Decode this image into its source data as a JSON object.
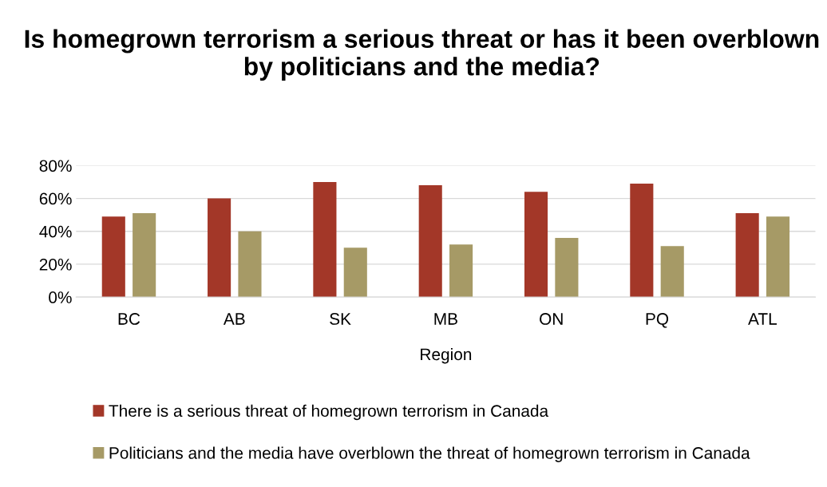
{
  "chart_data": {
    "type": "bar",
    "title": "Is homegrown terrorism a serious threat or has it been overblown by politicians and the media?",
    "xlabel": "Region",
    "categories": [
      "BC",
      "AB",
      "SK",
      "MB",
      "ON",
      "PQ",
      "ATL"
    ],
    "series": [
      {
        "name": "There is a serious threat of homegrown terrorism in Canada",
        "color": "#a33728",
        "values": [
          49,
          60,
          70,
          68,
          64,
          69,
          51
        ]
      },
      {
        "name": "Politicians and the media have overblown the threat of homegrown terrorism in Canada",
        "color": "#a69a66",
        "values": [
          51,
          40,
          30,
          32,
          36,
          31,
          49
        ]
      }
    ],
    "ylim": [
      0,
      80
    ],
    "yticks": [
      {
        "value": 0,
        "label": "0%"
      },
      {
        "value": 20,
        "label": "20%"
      },
      {
        "value": 40,
        "label": "40%"
      },
      {
        "value": 60,
        "label": "60%"
      },
      {
        "value": 80,
        "label": "80%"
      }
    ],
    "grid": "y",
    "legend": "bottom"
  }
}
